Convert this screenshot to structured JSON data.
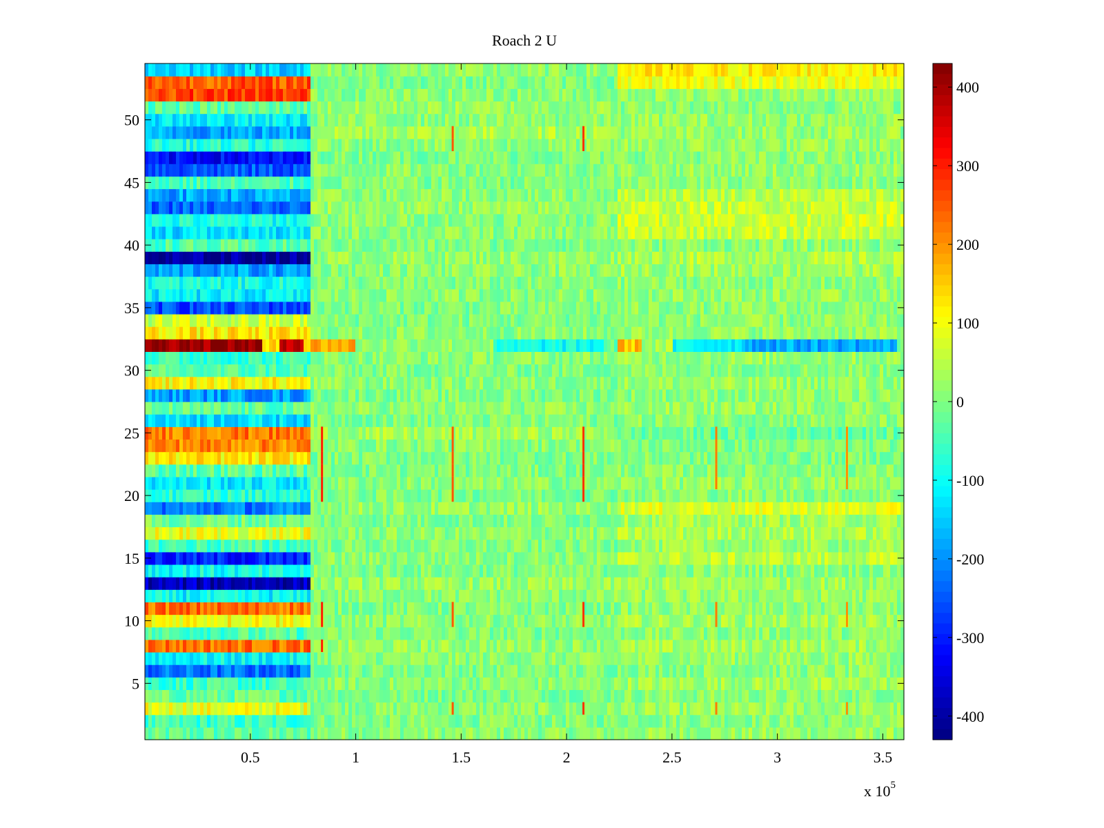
{
  "chart_data": {
    "type": "heatmap",
    "title": "Roach 2 U",
    "xlabel": "",
    "ylabel": "",
    "x_multiplier_label": "x 10",
    "x_multiplier_exponent": "5",
    "xlim": [
      0,
      360000
    ],
    "ylim": [
      0.5,
      54.5
    ],
    "x_ticks": [
      0.5,
      1,
      1.5,
      2,
      2.5,
      3,
      3.5
    ],
    "x_tick_labels": [
      "0.5",
      "1",
      "1.5",
      "2",
      "2.5",
      "3",
      "3.5"
    ],
    "y_ticks": [
      5,
      10,
      15,
      20,
      25,
      30,
      35,
      40,
      45,
      50
    ],
    "y_tick_labels": [
      "5",
      "10",
      "15",
      "20",
      "25",
      "30",
      "35",
      "40",
      "45",
      "50"
    ],
    "clim": [
      -430,
      430
    ],
    "colorbar_ticks": [
      400,
      300,
      200,
      100,
      0,
      -100,
      -200,
      -300,
      -400
    ],
    "colorbar_tick_labels": [
      "400",
      "300",
      "200",
      "100",
      "0",
      "-100",
      "-200",
      "-300",
      "-400"
    ],
    "colormap": "jet",
    "grid": false,
    "rows": 54,
    "segment_breaks": [
      78000,
      225000
    ],
    "row_levels": [
      {
        "row": 1,
        "early": -30,
        "mid": 10,
        "late": 20
      },
      {
        "row": 2,
        "early": -60,
        "mid": 0,
        "late": 10
      },
      {
        "row": 3,
        "early": 90,
        "mid": 10,
        "late": 20
      },
      {
        "row": 4,
        "early": -20,
        "mid": 0,
        "late": 10
      },
      {
        "row": 5,
        "early": -60,
        "mid": 10,
        "late": 30
      },
      {
        "row": 6,
        "early": -230,
        "mid": 0,
        "late": 10
      },
      {
        "row": 7,
        "early": -110,
        "mid": 10,
        "late": 20
      },
      {
        "row": 8,
        "early": 230,
        "mid": 20,
        "late": 30
      },
      {
        "row": 9,
        "early": -40,
        "mid": 0,
        "late": 10
      },
      {
        "row": 10,
        "early": 110,
        "mid": 10,
        "late": 30
      },
      {
        "row": 11,
        "early": 230,
        "mid": 0,
        "late": 10
      },
      {
        "row": 12,
        "early": -110,
        "mid": 10,
        "late": 20
      },
      {
        "row": 13,
        "early": -380,
        "mid": 20,
        "late": 30
      },
      {
        "row": 14,
        "early": -100,
        "mid": 0,
        "late": 10
      },
      {
        "row": 15,
        "early": -300,
        "mid": 10,
        "late": 50
      },
      {
        "row": 16,
        "early": -50,
        "mid": 0,
        "late": 20
      },
      {
        "row": 17,
        "early": 90,
        "mid": 10,
        "late": 40
      },
      {
        "row": 18,
        "early": -10,
        "mid": 0,
        "late": 30
      },
      {
        "row": 19,
        "early": -220,
        "mid": 20,
        "late": 80
      },
      {
        "row": 20,
        "early": -70,
        "mid": 0,
        "late": 10
      },
      {
        "row": 21,
        "early": -120,
        "mid": 10,
        "late": 20
      },
      {
        "row": 22,
        "early": -30,
        "mid": 0,
        "late": 10
      },
      {
        "row": 23,
        "early": 120,
        "mid": 0,
        "late": 0
      },
      {
        "row": 24,
        "early": 210,
        "mid": 10,
        "late": 0
      },
      {
        "row": 25,
        "early": 220,
        "mid": 30,
        "late": -20
      },
      {
        "row": 26,
        "early": -130,
        "mid": 0,
        "late": 10
      },
      {
        "row": 27,
        "early": -30,
        "mid": 10,
        "late": 20
      },
      {
        "row": 28,
        "early": -190,
        "mid": 0,
        "late": 10
      },
      {
        "row": 29,
        "early": 110,
        "mid": 10,
        "late": 20
      },
      {
        "row": 30,
        "early": -40,
        "mid": 0,
        "late": 10
      },
      {
        "row": 31,
        "early": -60,
        "mid": 10,
        "late": 20
      },
      {
        "row": 32,
        "early": 380,
        "mid": -40,
        "late": -90
      },
      {
        "row": 33,
        "early": 120,
        "mid": 10,
        "late": 20
      },
      {
        "row": 34,
        "early": 60,
        "mid": 0,
        "late": 10
      },
      {
        "row": 35,
        "early": -260,
        "mid": 0,
        "late": 10
      },
      {
        "row": 36,
        "early": -120,
        "mid": 10,
        "late": 20
      },
      {
        "row": 37,
        "early": -90,
        "mid": 0,
        "late": 10
      },
      {
        "row": 38,
        "early": -190,
        "mid": 10,
        "late": 30
      },
      {
        "row": 39,
        "early": -410,
        "mid": 20,
        "late": 40
      },
      {
        "row": 40,
        "early": -40,
        "mid": 0,
        "late": 10
      },
      {
        "row": 41,
        "early": -130,
        "mid": 10,
        "late": 60
      },
      {
        "row": 42,
        "early": -90,
        "mid": 10,
        "late": 70
      },
      {
        "row": 43,
        "early": -240,
        "mid": 20,
        "late": 60
      },
      {
        "row": 44,
        "early": -180,
        "mid": 10,
        "late": 50
      },
      {
        "row": 45,
        "early": -50,
        "mid": 0,
        "late": 10
      },
      {
        "row": 46,
        "early": -250,
        "mid": 10,
        "late": 20
      },
      {
        "row": 47,
        "early": -320,
        "mid": 0,
        "late": 10
      },
      {
        "row": 48,
        "early": -80,
        "mid": 10,
        "late": 20
      },
      {
        "row": 49,
        "early": -180,
        "mid": 40,
        "late": 20
      },
      {
        "row": 50,
        "early": -120,
        "mid": 10,
        "late": 20
      },
      {
        "row": 51,
        "early": -30,
        "mid": 20,
        "late": 10
      },
      {
        "row": 52,
        "early": 270,
        "mid": 10,
        "late": 20
      },
      {
        "row": 53,
        "early": 250,
        "mid": 0,
        "late": 90
      },
      {
        "row": 54,
        "early": -140,
        "mid": 10,
        "late": 120
      }
    ],
    "spikes": [
      {
        "x": 84000,
        "rows": [
          8,
          10,
          11,
          20,
          21,
          22,
          23,
          24,
          25
        ],
        "value": 300
      },
      {
        "x": 146000,
        "rows": [
          3,
          10,
          11,
          20,
          21,
          22,
          23,
          24,
          25,
          48,
          49
        ],
        "value": 250
      },
      {
        "x": 208000,
        "rows": [
          3,
          10,
          11,
          20,
          21,
          22,
          23,
          24,
          25,
          48,
          49
        ],
        "value": 280
      },
      {
        "x": 271000,
        "rows": [
          3,
          10,
          11,
          21,
          22,
          23,
          24,
          25
        ],
        "value": 220
      },
      {
        "x": 333000,
        "rows": [
          3,
          10,
          11,
          21,
          22,
          23,
          24,
          25
        ],
        "value": 200
      }
    ],
    "row32_segments": [
      {
        "from": 0,
        "to": 56000,
        "value": 420
      },
      {
        "from": 56000,
        "to": 64000,
        "value": 120
      },
      {
        "from": 64000,
        "to": 75000,
        "value": 400
      },
      {
        "from": 75000,
        "to": 78000,
        "value": 150
      },
      {
        "from": 78000,
        "to": 100000,
        "value": 180
      },
      {
        "from": 100000,
        "to": 165000,
        "value": 20
      },
      {
        "from": 165000,
        "to": 218000,
        "value": -100
      },
      {
        "from": 218000,
        "to": 225000,
        "value": -20
      },
      {
        "from": 225000,
        "to": 235000,
        "value": 160
      },
      {
        "from": 235000,
        "to": 250000,
        "value": 30
      },
      {
        "from": 250000,
        "to": 285000,
        "value": -110
      },
      {
        "from": 285000,
        "to": 356000,
        "value": -180
      },
      {
        "from": 356000,
        "to": 360000,
        "value": 10
      }
    ]
  }
}
